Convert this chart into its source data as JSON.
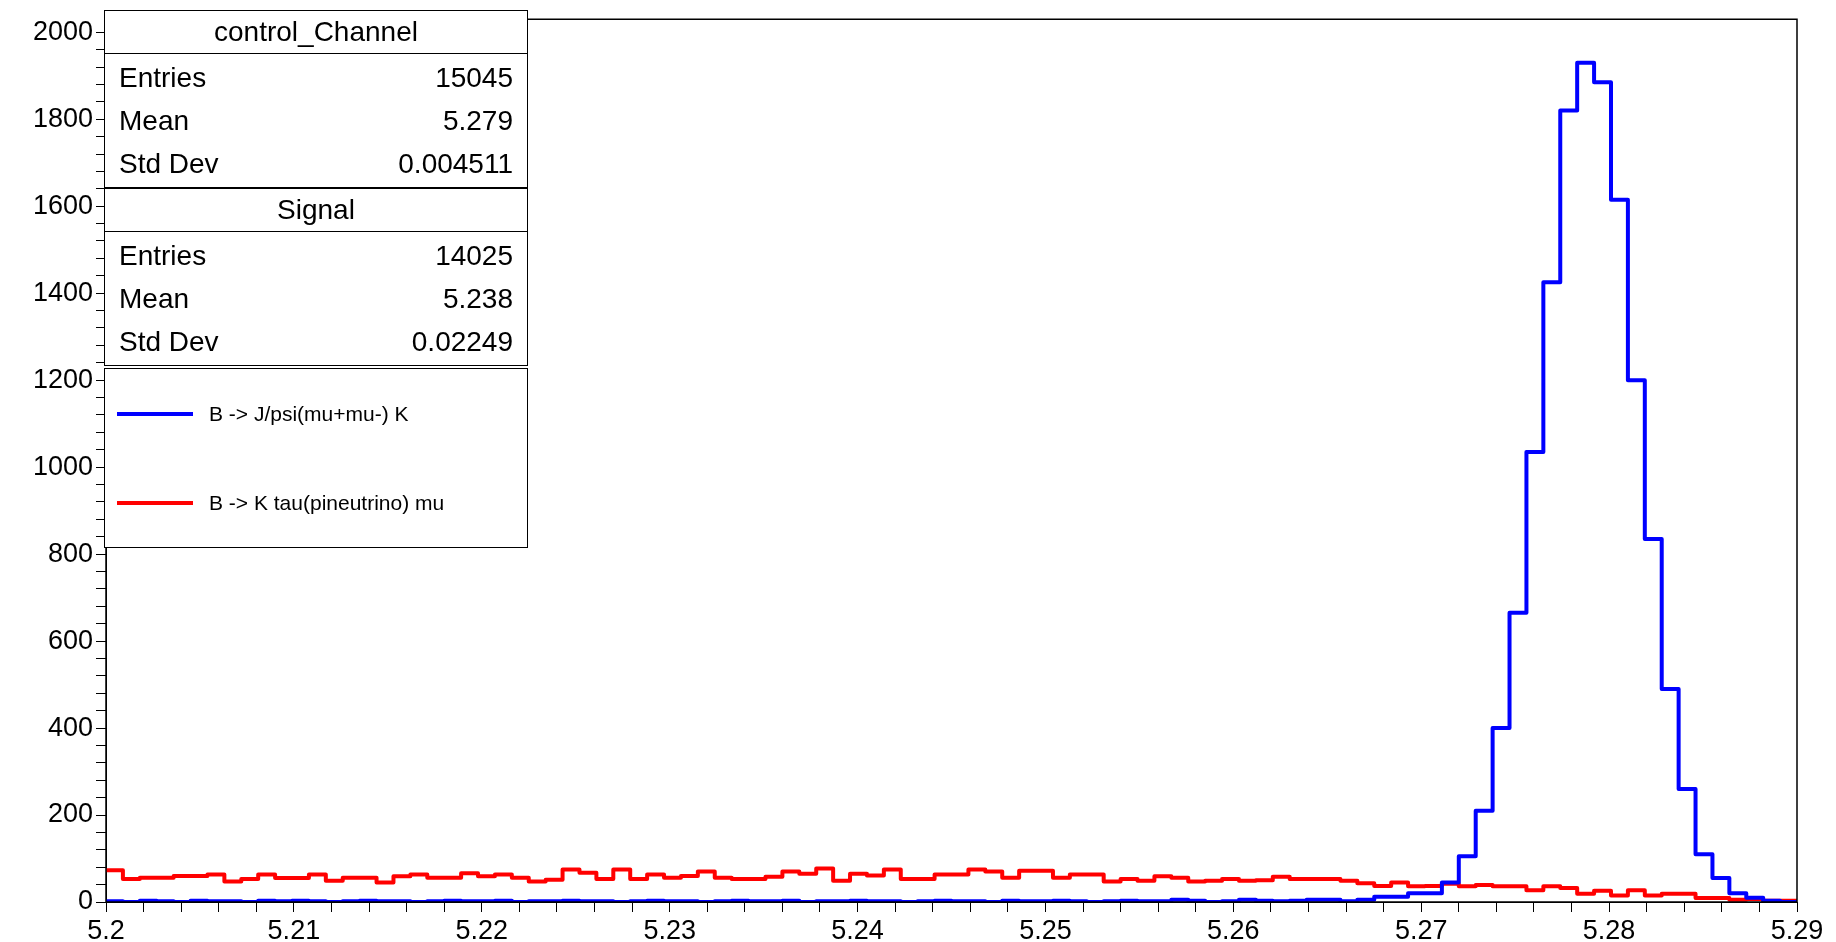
{
  "chart_data": {
    "type": "histogram",
    "legend": "top left",
    "annotations": [
      "control_Channel",
      "Entries",
      "15045",
      "Mean",
      "5.279",
      "Std Dev",
      "0.004511",
      "Signal",
      "Entries",
      "14025",
      "Mean",
      "5.238",
      "Std Dev",
      "0.02249"
    ],
    "bins": [
      5.2,
      5.2009,
      5.2018,
      5.2027,
      5.2036,
      5.2045,
      5.2054,
      5.2063,
      5.2072,
      5.2081,
      5.209,
      5.2099,
      5.2108,
      5.2117,
      5.2126,
      5.2135,
      5.2144,
      5.2153,
      5.2162,
      5.2171,
      5.218,
      5.2189,
      5.2198,
      5.2207,
      5.2216,
      5.2225,
      5.2234,
      5.2243,
      5.2252,
      5.2261,
      5.227,
      5.2279,
      5.2288,
      5.2297,
      5.2306,
      5.2315,
      5.2324,
      5.2333,
      5.2342,
      5.2351,
      5.236,
      5.2369,
      5.2378,
      5.2387,
      5.2396,
      5.2405,
      5.2414,
      5.2423,
      5.2432,
      5.2441,
      5.245,
      5.2459,
      5.2468,
      5.2477,
      5.2486,
      5.2495,
      5.2504,
      5.2513,
      5.2522,
      5.2531,
      5.254,
      5.2549,
      5.2558,
      5.2567,
      5.2576,
      5.2585,
      5.2594,
      5.2603,
      5.2612,
      5.2621,
      5.263,
      5.2639,
      5.2648,
      5.2657,
      5.2666,
      5.2675,
      5.2684,
      5.2693,
      5.2702,
      5.2711,
      5.272,
      5.2729,
      5.2738,
      5.2747,
      5.2756,
      5.2765,
      5.2774,
      5.2783,
      5.2792,
      5.2801,
      5.281,
      5.2819,
      5.2828,
      5.2837,
      5.2846,
      5.2855,
      5.2864,
      5.2873,
      5.2882,
      5.2891,
      5.29
    ],
    "series": [
      {
        "name": "B -> J/psi(mu+mu-) K",
        "color": "#0000ff",
        "values": [
          2,
          0,
          3,
          2,
          0,
          3,
          2,
          2,
          0,
          3,
          2,
          3,
          2,
          0,
          2,
          3,
          2,
          2,
          0,
          2,
          3,
          2,
          2,
          3,
          0,
          2,
          2,
          3,
          2,
          2,
          0,
          2,
          3,
          2,
          2,
          0,
          2,
          3,
          2,
          2,
          3,
          0,
          2,
          2,
          3,
          2,
          2,
          0,
          2,
          3,
          2,
          2,
          0,
          3,
          2,
          2,
          3,
          2,
          0,
          2,
          3,
          2,
          2,
          5,
          3,
          0,
          2,
          5,
          3,
          2,
          3,
          5,
          5,
          2,
          5,
          12,
          12,
          20,
          20,
          45,
          105,
          210,
          400,
          665,
          1035,
          1425,
          1820,
          1930,
          1885,
          1615,
          1200,
          835,
          490,
          260,
          110,
          55,
          20,
          10,
          3,
          0
        ]
      },
      {
        "name": "B -> K tau(pineutrino) mu",
        "color": "#ff0000",
        "values": [
          73,
          53,
          56,
          56,
          60,
          60,
          63,
          47,
          53,
          63,
          55,
          55,
          63,
          49,
          56,
          56,
          45,
          59,
          63,
          56,
          56,
          66,
          59,
          63,
          56,
          47,
          51,
          75,
          67,
          53,
          75,
          53,
          63,
          56,
          60,
          70,
          56,
          53,
          53,
          58,
          70,
          65,
          77,
          49,
          65,
          61,
          75,
          53,
          53,
          63,
          63,
          75,
          70,
          56,
          72,
          72,
          56,
          63,
          63,
          47,
          53,
          49,
          59,
          56,
          47,
          49,
          53,
          49,
          50,
          58,
          53,
          53,
          53,
          49,
          43,
          37,
          45,
          36,
          37,
          42,
          36,
          39,
          36,
          36,
          27,
          36,
          32,
          19,
          26,
          15,
          27,
          15,
          19,
          19,
          9,
          9,
          5,
          7,
          3,
          3
        ]
      }
    ],
    "xlim": [
      5.2,
      5.29
    ],
    "xticks": [
      5.2,
      {
        "value": 5.202,
        "label": null
      },
      {
        "value": 5.204,
        "label": null
      },
      {
        "value": 5.206,
        "label": null
      },
      {
        "value": 5.208,
        "label": null
      },
      5.21,
      {
        "value": 5.212,
        "label": null
      },
      {
        "value": 5.214,
        "label": null
      },
      {
        "value": 5.216,
        "label": null
      },
      {
        "value": 5.218,
        "label": null
      },
      5.22,
      {
        "value": 5.222,
        "label": null
      },
      {
        "value": 5.224,
        "label": null
      },
      {
        "value": 5.226,
        "label": null
      },
      {
        "value": 5.228,
        "label": null
      },
      5.23,
      {
        "value": 5.232,
        "label": null
      },
      {
        "value": 5.234,
        "label": null
      },
      {
        "value": 5.236,
        "label": null
      },
      {
        "value": 5.238,
        "label": null
      },
      5.24,
      {
        "value": 5.242,
        "label": null
      },
      {
        "value": 5.244,
        "label": null
      },
      {
        "value": 5.246,
        "label": null
      },
      {
        "value": 5.248,
        "label": null
      },
      5.25,
      {
        "value": 5.252,
        "label": null
      },
      {
        "value": 5.254,
        "label": null
      },
      {
        "value": 5.256,
        "label": null
      },
      {
        "value": 5.258,
        "label": null
      },
      5.26,
      {
        "value": 5.262,
        "label": null
      },
      {
        "value": 5.264,
        "label": null
      },
      {
        "value": 5.266,
        "label": null
      },
      {
        "value": 5.268,
        "label": null
      },
      5.27,
      {
        "value": 5.272,
        "label": null
      },
      {
        "value": 5.274,
        "label": null
      },
      {
        "value": 5.276,
        "label": null
      },
      {
        "value": 5.278,
        "label": null
      },
      5.28,
      {
        "value": 5.282,
        "label": null
      },
      {
        "value": 5.284,
        "label": null
      },
      {
        "value": 5.286,
        "label": null
      },
      {
        "value": 5.288,
        "label": null
      },
      5.29
    ],
    "ylim": [
      0,
      2030
    ],
    "yticks": [
      0,
      {
        "value": 40,
        "label": null
      },
      {
        "value": 80,
        "label": null
      },
      {
        "value": 120,
        "label": null
      },
      {
        "value": 160,
        "label": null
      },
      200,
      {
        "value": 240,
        "label": null
      },
      {
        "value": 280,
        "label": null
      },
      {
        "value": 320,
        "label": null
      },
      {
        "value": 360,
        "label": null
      },
      400,
      {
        "value": 440,
        "label": null
      },
      {
        "value": 480,
        "label": null
      },
      {
        "value": 520,
        "label": null
      },
      {
        "value": 560,
        "label": null
      },
      600,
      {
        "value": 640,
        "label": null
      },
      {
        "value": 680,
        "label": null
      },
      {
        "value": 720,
        "label": null
      },
      {
        "value": 760,
        "label": null
      },
      800,
      {
        "value": 840,
        "label": null
      },
      {
        "value": 880,
        "label": null
      },
      {
        "value": 920,
        "label": null
      },
      {
        "value": 960,
        "label": null
      },
      1000,
      {
        "value": 1040,
        "label": null
      },
      {
        "value": 1080,
        "label": null
      },
      {
        "value": 1120,
        "label": null
      },
      {
        "value": 1160,
        "label": null
      },
      1200,
      {
        "value": 1240,
        "label": null
      },
      {
        "value": 1280,
        "label": null
      },
      {
        "value": 1320,
        "label": null
      },
      {
        "value": 1360,
        "label": null
      },
      1400,
      {
        "value": 1440,
        "label": null
      },
      {
        "value": 1480,
        "label": null
      },
      {
        "value": 1520,
        "label": null
      },
      {
        "value": 1560,
        "label": null
      },
      1600,
      {
        "value": 1640,
        "label": null
      },
      {
        "value": 1680,
        "label": null
      },
      {
        "value": 1720,
        "label": null
      },
      {
        "value": 1760,
        "label": null
      },
      1800,
      {
        "value": 1840,
        "label": null
      },
      {
        "value": 1880,
        "label": null
      },
      {
        "value": 1920,
        "label": null
      },
      {
        "value": 1960,
        "label": null
      },
      2000
    ]
  }
}
